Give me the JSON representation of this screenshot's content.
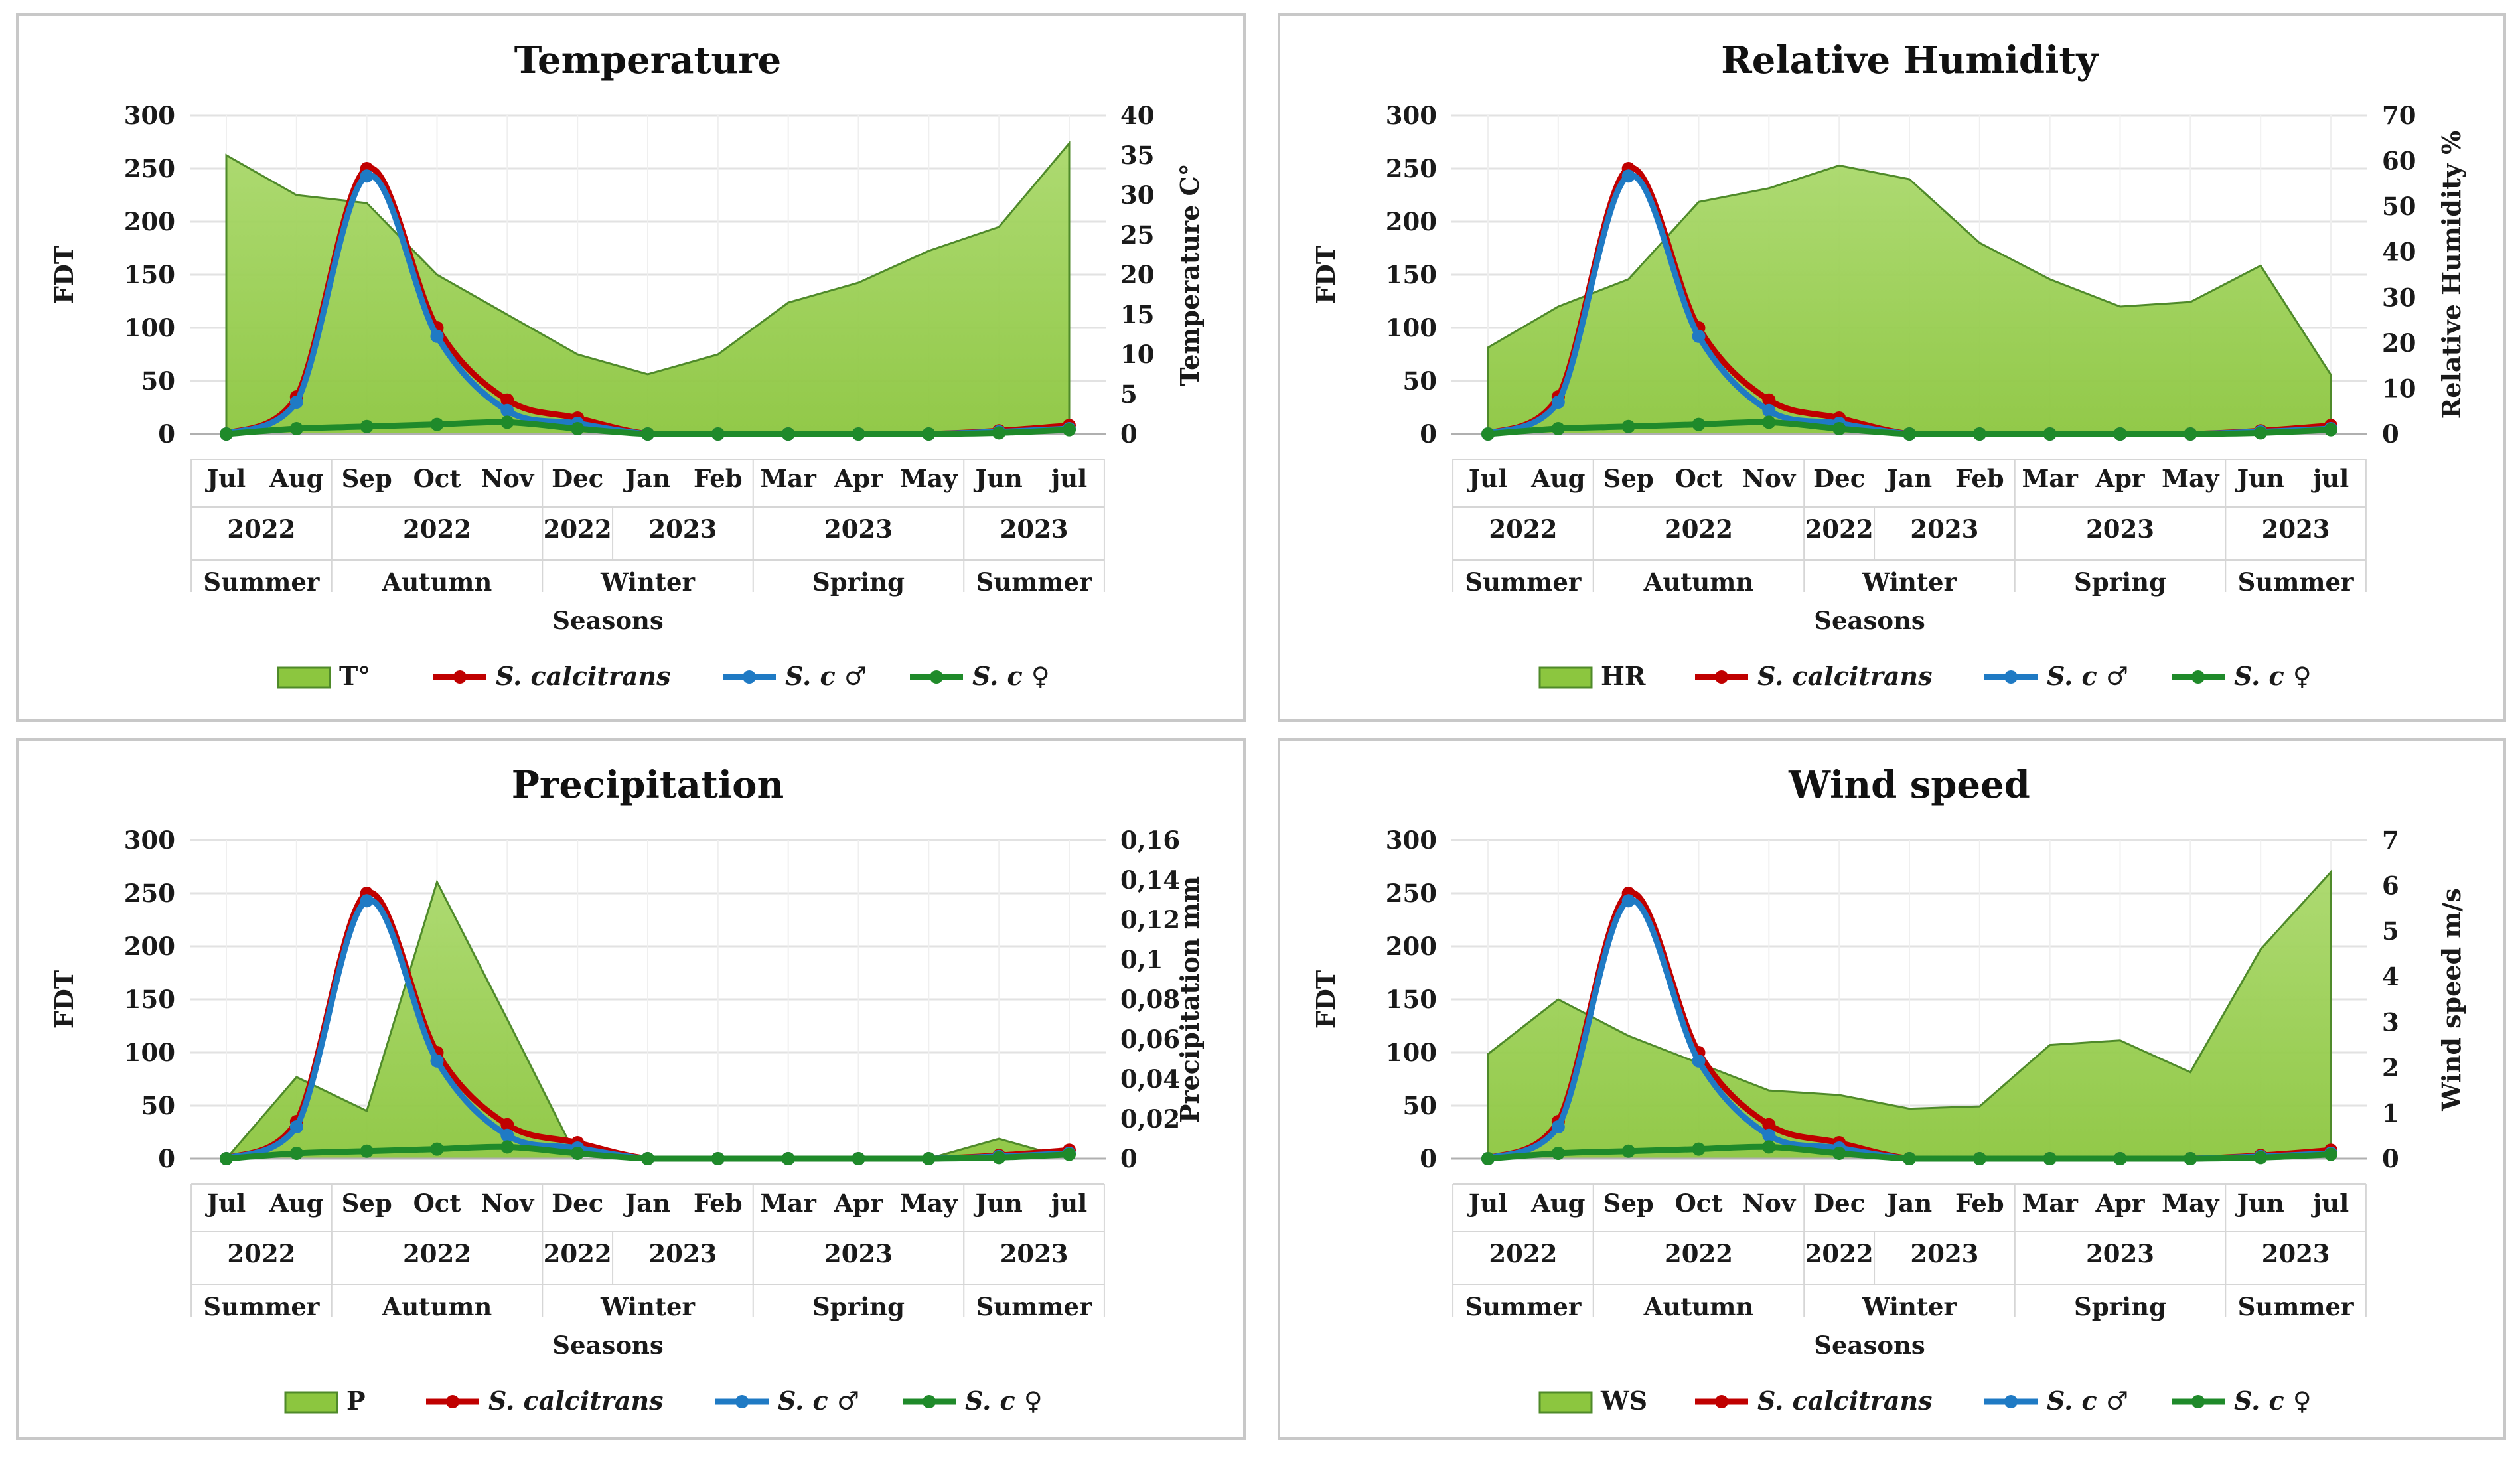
{
  "colors": {
    "area": "#8cc63f",
    "area_dark": "#4f8a2a",
    "s_calcitrans": "#c00000",
    "s_male": "#1f7ac4",
    "s_female": "#1f8a2a",
    "grid": "#e2e2e2",
    "axis": "#b0b0b0"
  },
  "shared": {
    "x_labels": [
      "Jul",
      "Aug",
      "Sep",
      "Oct",
      "Nov",
      "Dec",
      "Jan",
      "Feb",
      "Mar",
      "Apr",
      "May",
      "Jun",
      "jul"
    ],
    "year_groups": [
      {
        "label": "2022",
        "start": 0,
        "end": 1
      },
      {
        "label": "2022",
        "start": 2,
        "end": 4
      },
      {
        "label": "2022",
        "start": 5,
        "end": 5
      },
      {
        "label": "2023",
        "start": 6,
        "end": 7
      },
      {
        "label": "2023",
        "start": 8,
        "end": 10
      },
      {
        "label": "2023",
        "start": 11,
        "end": 12
      }
    ],
    "season_groups": [
      {
        "label": "Summer",
        "start": 0,
        "end": 1
      },
      {
        "label": "Autumn",
        "start": 2,
        "end": 4
      },
      {
        "label": "Winter",
        "start": 5,
        "end": 7
      },
      {
        "label": "Spring",
        "start": 8,
        "end": 10
      },
      {
        "label": "Summer",
        "start": 11,
        "end": 12
      }
    ],
    "x_axis_title": "Seasons",
    "y_left_label": "FDT",
    "y_left_ticks": [
      "0",
      "50",
      "100",
      "150",
      "200",
      "250",
      "300"
    ],
    "y_left_lim": [
      0,
      300
    ],
    "series": [
      {
        "name": "S. calcitrans",
        "color_key": "s_calcitrans",
        "values": [
          0,
          35,
          250,
          100,
          32,
          15,
          0,
          0,
          0,
          0,
          0,
          3,
          8
        ]
      },
      {
        "name": "S. c ♂",
        "color_key": "s_male",
        "values": [
          0,
          30,
          243,
          92,
          22,
          10,
          0,
          0,
          0,
          0,
          0,
          2,
          5
        ]
      },
      {
        "name": "S. c ♀",
        "color_key": "s_female",
        "values": [
          0,
          5,
          7,
          9,
          11,
          5,
          0,
          0,
          0,
          0,
          0,
          1,
          4
        ]
      }
    ]
  },
  "chart_data": [
    {
      "type": "area+line",
      "title": "Temperature",
      "area_name": "T°",
      "y2label": "Temperature C°",
      "y2_ticks": [
        "0",
        "5",
        "10",
        "15",
        "20",
        "25",
        "30",
        "35",
        "40"
      ],
      "y2lim": [
        0,
        40
      ],
      "area_values": [
        35,
        30,
        29,
        20,
        15,
        10,
        7.5,
        10,
        16.5,
        19,
        23,
        26,
        36.5
      ]
    },
    {
      "type": "area+line",
      "title": "Relative Humidity",
      "area_name": "HR",
      "y2label": "Relative Humidity %",
      "y2_ticks": [
        "0",
        "10",
        "20",
        "30",
        "40",
        "50",
        "60",
        "70"
      ],
      "y2lim": [
        0,
        70
      ],
      "area_values": [
        19,
        28,
        34,
        51,
        54,
        59,
        56,
        42,
        34,
        28,
        29,
        37,
        13
      ]
    },
    {
      "type": "area+line",
      "title": "Precipitation",
      "area_name": "P",
      "y2label": "Precipitation mm",
      "y2_ticks": [
        "0",
        "0,02",
        "0,04",
        "0,06",
        "0,08",
        "0,1",
        "0,12",
        "0,14",
        "0,16"
      ],
      "y2lim": [
        0,
        0.16
      ],
      "area_values": [
        0,
        0.041,
        0.024,
        0.139,
        0.07,
        0,
        0,
        0,
        0,
        0,
        0,
        0.01,
        0
      ]
    },
    {
      "type": "area+line",
      "title": "Wind speed",
      "area_name": "WS",
      "y2label": "Wind speed m/s",
      "y2_ticks": [
        "0",
        "1",
        "2",
        "3",
        "4",
        "5",
        "6",
        "7"
      ],
      "y2lim": [
        0,
        7
      ],
      "area_values": [
        2.3,
        3.5,
        2.7,
        2.1,
        1.5,
        1.4,
        1.1,
        1.15,
        2.5,
        2.6,
        1.9,
        4.6,
        6.3
      ]
    }
  ]
}
